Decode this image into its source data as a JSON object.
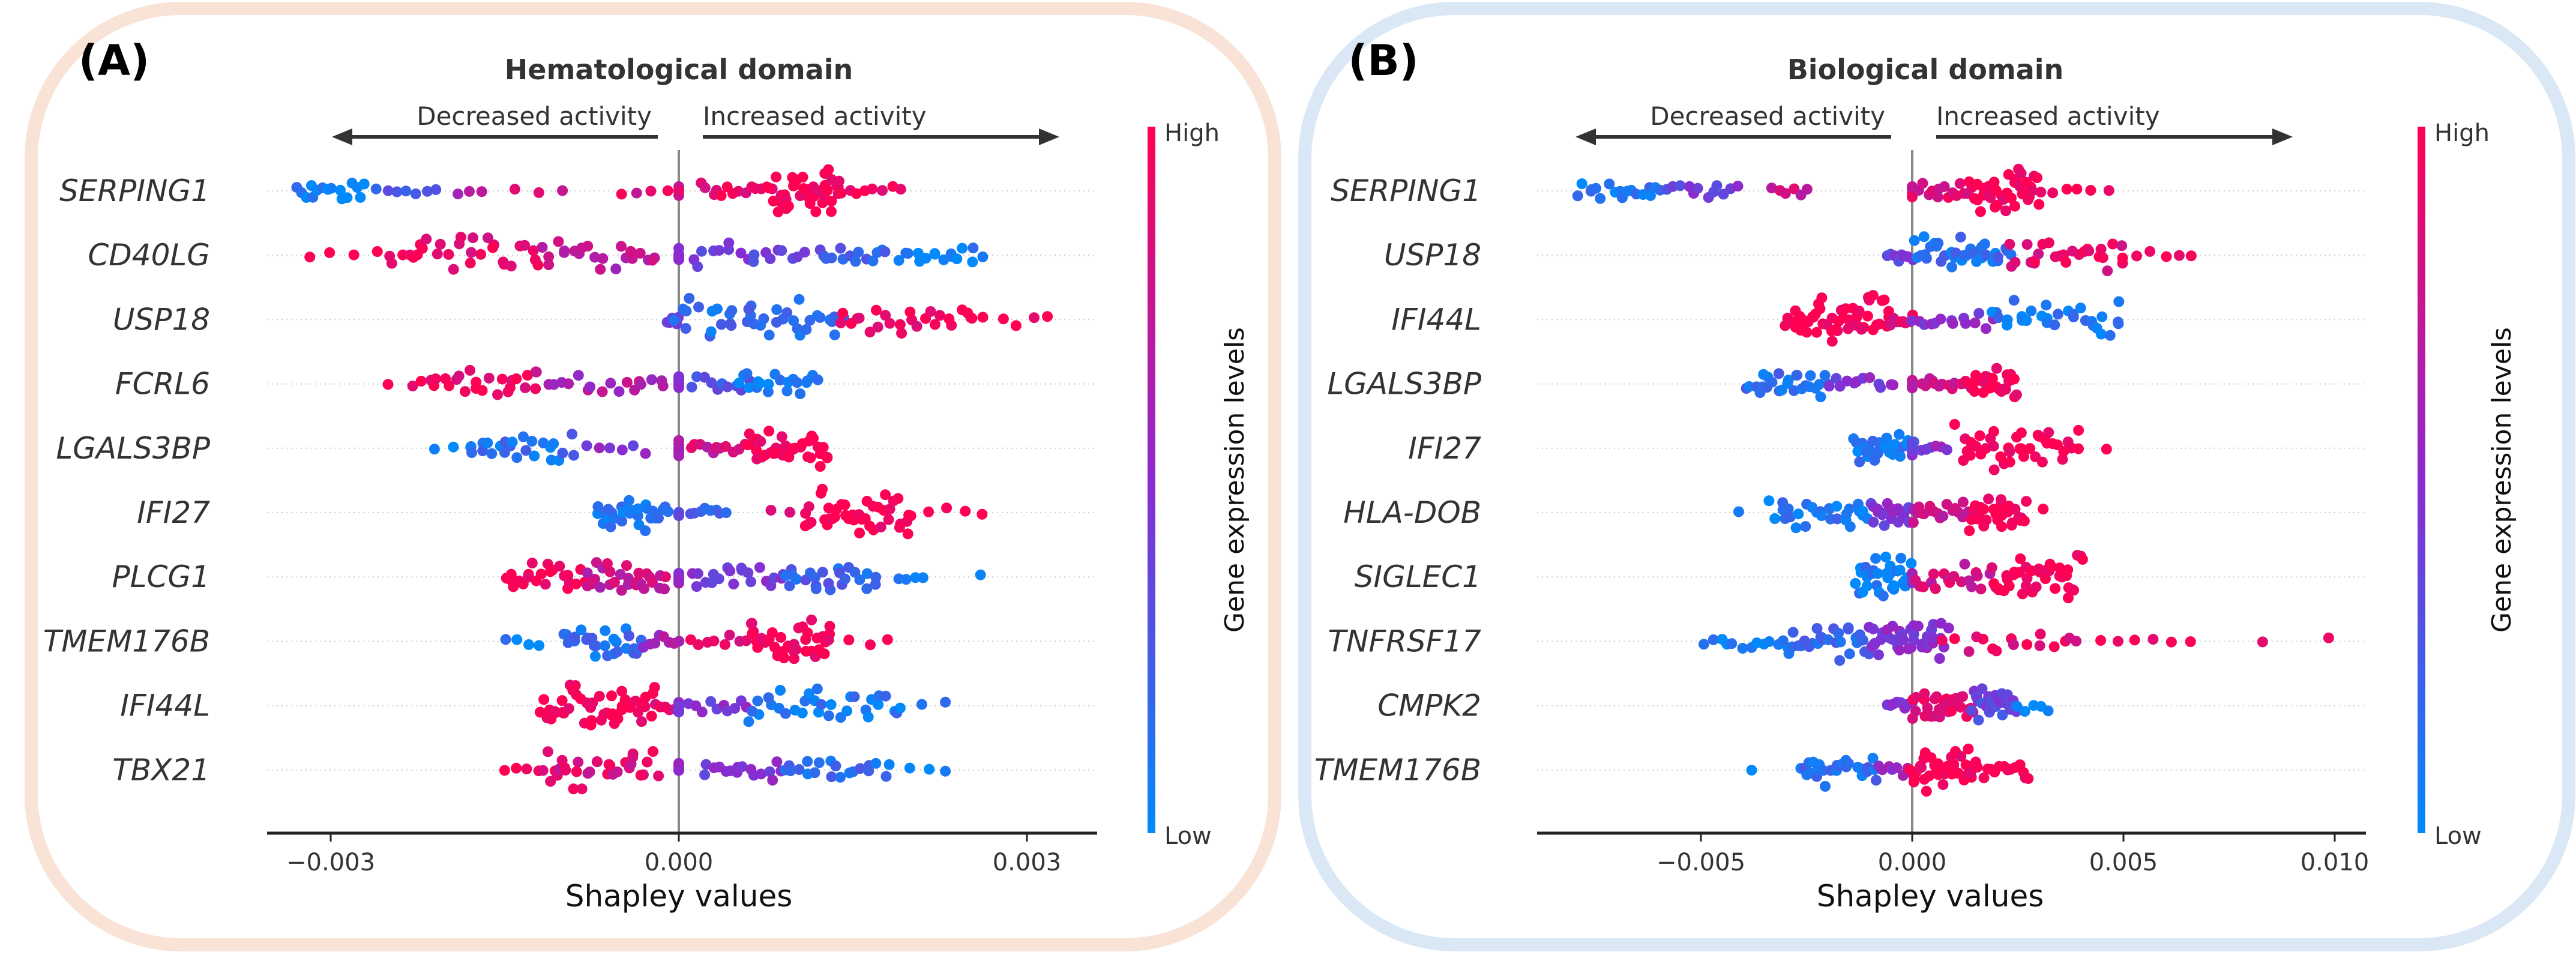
{
  "colors": {
    "low": "#008afb",
    "mid": "#8a2bd0",
    "high": "#ff0052",
    "border_a": "#f9e2d6",
    "border_b": "#dae7f5",
    "axis": "#222222",
    "zero_line": "#888888"
  },
  "chart_data": [
    {
      "type": "scatter",
      "subtype": "beeswarm (SHAP summary)",
      "panel_label": "(A)",
      "title": "Hematological domain",
      "decreased_label": "Decreased activity",
      "increased_label": "Increased activity",
      "xlabel": "Shapley values",
      "ylabel": "",
      "xlim": [
        -0.00347,
        0.0036
      ],
      "xticks": [
        -0.003,
        0.0,
        0.003
      ],
      "xtick_labels": [
        "−0.003",
        "0.000",
        "0.003"
      ],
      "grid": false,
      "colorbar": {
        "title": "Gene expression levels",
        "high_label": "High",
        "low_label": "Low",
        "placement": "right"
      },
      "features": [
        {
          "name": "SERPING1",
          "clusters": [
            [
              -0.0033,
              -0.0027,
              16,
              0.05
            ],
            [
              -0.0026,
              -0.0021,
              7,
              0.25
            ],
            [
              -0.0019,
              -0.0017,
              3,
              0.6
            ],
            [
              -0.0014,
              -0.001,
              3,
              0.8
            ],
            [
              -0.0005,
              -0.0001,
              4,
              0.85
            ],
            [
              0.0,
              0.0,
              6,
              0.8
            ],
            [
              0.0002,
              0.0008,
              14,
              0.9
            ],
            [
              0.0008,
              0.0014,
              40,
              1.0
            ],
            [
              0.0014,
              0.0019,
              8,
              0.97
            ]
          ]
        },
        {
          "name": "CD40LG",
          "clusters": [
            [
              -0.0032,
              -0.0026,
              4,
              1.0
            ],
            [
              -0.0025,
              -0.0012,
              30,
              0.9
            ],
            [
              -0.0012,
              -0.0002,
              22,
              0.7
            ],
            [
              0.0,
              0.0,
              8,
              0.55
            ],
            [
              0.0001,
              0.0011,
              18,
              0.4
            ],
            [
              0.0012,
              0.0018,
              14,
              0.25
            ],
            [
              0.0019,
              0.0026,
              16,
              0.05
            ]
          ]
        },
        {
          "name": "USP18",
          "clusters": [
            [
              -0.0001,
              0.0,
              6,
              0.45
            ],
            [
              0.0,
              0.0014,
              40,
              0.15
            ],
            [
              0.0014,
              0.0025,
              24,
              0.95
            ],
            [
              0.0025,
              0.0032,
              6,
              1.0
            ]
          ]
        },
        {
          "name": "FCRL6",
          "clusters": [
            [
              -0.0025,
              -0.0023,
              2,
              1.0
            ],
            [
              -0.0022,
              -0.0012,
              24,
              0.95
            ],
            [
              -0.0012,
              -0.0001,
              18,
              0.65
            ],
            [
              0.0,
              0.0,
              8,
              0.55
            ],
            [
              0.0001,
              0.0006,
              10,
              0.3
            ],
            [
              0.0005,
              0.0012,
              20,
              0.05
            ]
          ]
        },
        {
          "name": "LGALS3BP",
          "clusters": [
            [
              -0.0021,
              -0.0018,
              3,
              0.1
            ],
            [
              -0.0018,
              -0.0009,
              24,
              0.15
            ],
            [
              -0.0008,
              -0.0003,
              6,
              0.45
            ],
            [
              0.0,
              0.0,
              8,
              0.7
            ],
            [
              0.0001,
              0.0006,
              12,
              0.8
            ],
            [
              0.0006,
              0.0013,
              34,
              1.0
            ]
          ]
        },
        {
          "name": "IFI27",
          "clusters": [
            [
              -0.0007,
              -0.0001,
              30,
              0.1
            ],
            [
              0.0,
              0.0,
              8,
              0.35
            ],
            [
              0.0001,
              0.0004,
              8,
              0.25
            ],
            [
              0.0008,
              0.0011,
              3,
              0.95
            ],
            [
              0.0011,
              0.002,
              40,
              1.0
            ],
            [
              0.002,
              0.0026,
              5,
              1.0
            ]
          ]
        },
        {
          "name": "PLCG1",
          "clusters": [
            [
              -0.0015,
              -0.0008,
              24,
              1.0
            ],
            [
              -0.0008,
              -0.0001,
              28,
              0.75
            ],
            [
              0.0,
              0.0,
              8,
              0.55
            ],
            [
              0.0001,
              0.0009,
              20,
              0.45
            ],
            [
              0.0009,
              0.0017,
              24,
              0.2
            ],
            [
              0.0019,
              0.0021,
              4,
              0.05
            ],
            [
              0.0026,
              0.0026,
              1,
              0.05
            ]
          ]
        },
        {
          "name": "TMEM176B",
          "clusters": [
            [
              -0.0015,
              -0.0012,
              4,
              0.1
            ],
            [
              -0.001,
              -0.0003,
              28,
              0.15
            ],
            [
              -0.0003,
              0.0,
              8,
              0.6
            ],
            [
              0.0001,
              0.0006,
              8,
              0.9
            ],
            [
              0.0006,
              0.0013,
              40,
              1.0
            ],
            [
              0.0013,
              0.0018,
              4,
              0.95
            ]
          ]
        },
        {
          "name": "IFI44L",
          "clusters": [
            [
              -0.0012,
              -0.0002,
              48,
              1.0
            ],
            [
              -0.0002,
              0.0,
              6,
              0.85
            ],
            [
              0.0,
              0.0,
              6,
              0.5
            ],
            [
              0.0001,
              0.0006,
              10,
              0.45
            ],
            [
              0.0006,
              0.0019,
              32,
              0.08
            ],
            [
              0.0021,
              0.0023,
              2,
              0.05
            ]
          ]
        },
        {
          "name": "TBX21",
          "clusters": [
            [
              -0.0015,
              -0.0012,
              4,
              1.0
            ],
            [
              -0.0012,
              -0.0002,
              32,
              0.85
            ],
            [
              0.0,
              0.0,
              8,
              0.6
            ],
            [
              0.0002,
              0.0009,
              16,
              0.45
            ],
            [
              0.0009,
              0.0018,
              20,
              0.15
            ],
            [
              0.002,
              0.0023,
              3,
              0.05
            ]
          ]
        }
      ]
    },
    {
      "type": "scatter",
      "subtype": "beeswarm (SHAP summary)",
      "panel_label": "(B)",
      "title": "Biological domain",
      "decreased_label": "Decreased activity",
      "increased_label": "Increased activity",
      "xlabel": "Shapley values",
      "ylabel": "",
      "xlim": [
        -0.0089,
        0.0108
      ],
      "xticks": [
        -0.005,
        0.0,
        0.005,
        0.01
      ],
      "xtick_labels": [
        "−0.005",
        "0.000",
        "0.005",
        "0.010"
      ],
      "grid": false,
      "colorbar": {
        "title": "Gene expression levels",
        "high_label": "High",
        "low_label": "Low",
        "placement": "right"
      },
      "features": [
        {
          "name": "SERPING1",
          "clusters": [
            [
              -0.0079,
              -0.0059,
              18,
              0.1
            ],
            [
              -0.0058,
              -0.0041,
              12,
              0.4
            ],
            [
              -0.0033,
              -0.0025,
              6,
              0.75
            ],
            [
              0.0,
              0.0,
              5,
              0.85
            ],
            [
              0.0002,
              0.0014,
              14,
              0.85
            ],
            [
              0.0014,
              0.003,
              40,
              1.0
            ],
            [
              0.003,
              0.0046,
              6,
              1.0
            ]
          ]
        },
        {
          "name": "USP18",
          "clusters": [
            [
              -0.0006,
              0.0,
              8,
              0.4
            ],
            [
              0.0,
              0.0023,
              36,
              0.15
            ],
            [
              0.0023,
              0.005,
              26,
              0.9
            ],
            [
              0.005,
              0.0066,
              6,
              1.0
            ]
          ]
        },
        {
          "name": "IFI44L",
          "clusters": [
            [
              -0.003,
              -0.0005,
              54,
              1.0
            ],
            [
              -0.0005,
              0.0,
              8,
              0.85
            ],
            [
              0.0,
              0.0019,
              14,
              0.5
            ],
            [
              0.0019,
              0.005,
              30,
              0.08
            ]
          ]
        },
        {
          "name": "LGALS3BP",
          "clusters": [
            [
              -0.0039,
              -0.002,
              26,
              0.15
            ],
            [
              -0.002,
              -0.0004,
              12,
              0.45
            ],
            [
              0.0,
              0.0,
              8,
              0.7
            ],
            [
              0.0002,
              0.0014,
              14,
              0.8
            ],
            [
              0.0014,
              0.0025,
              26,
              1.0
            ]
          ]
        },
        {
          "name": "IFI27",
          "clusters": [
            [
              -0.0014,
              0.0,
              28,
              0.1
            ],
            [
              0.0,
              0.0,
              6,
              0.4
            ],
            [
              0.0002,
              0.0008,
              6,
              0.5
            ],
            [
              0.0011,
              0.0039,
              40,
              1.0
            ],
            [
              0.0046,
              0.0046,
              1,
              1.0
            ]
          ]
        },
        {
          "name": "HLA-DOB",
          "clusters": [
            [
              -0.0042,
              -0.004,
              1,
              0.05
            ],
            [
              -0.0033,
              -0.001,
              30,
              0.1
            ],
            [
              -0.001,
              0.0,
              20,
              0.45
            ],
            [
              0.0,
              0.0013,
              18,
              0.75
            ],
            [
              0.0013,
              0.0027,
              30,
              1.0
            ],
            [
              0.0031,
              0.0031,
              1,
              1.0
            ]
          ]
        },
        {
          "name": "SIGLEC1",
          "clusters": [
            [
              -0.0013,
              0.0,
              34,
              0.08
            ],
            [
              0.0,
              0.0,
              6,
              0.5
            ],
            [
              0.0001,
              0.002,
              20,
              0.8
            ],
            [
              0.002,
              0.004,
              40,
              1.0
            ]
          ]
        },
        {
          "name": "TNFRSF17",
          "clusters": [
            [
              -0.0049,
              -0.003,
              12,
              0.05
            ],
            [
              -0.003,
              -0.001,
              30,
              0.2
            ],
            [
              -0.001,
              0.0008,
              40,
              0.5
            ],
            [
              0.0008,
              0.004,
              16,
              0.9
            ],
            [
              0.0045,
              0.0066,
              6,
              1.0
            ],
            [
              0.0083,
              0.0098,
              2,
              1.0
            ]
          ]
        },
        {
          "name": "CMPK2",
          "clusters": [
            [
              -0.0006,
              0.0,
              8,
              0.5
            ],
            [
              0.0,
              0.0014,
              30,
              0.9
            ],
            [
              0.0014,
              0.0025,
              28,
              0.35
            ],
            [
              0.0025,
              0.0032,
              5,
              0.08
            ]
          ]
        },
        {
          "name": "TMEM176B",
          "clusters": [
            [
              -0.0038,
              -0.0038,
              1,
              0.05
            ],
            [
              -0.0027,
              -0.0008,
              28,
              0.15
            ],
            [
              -0.0008,
              0.0,
              8,
              0.6
            ],
            [
              0.0,
              0.0014,
              36,
              1.0
            ],
            [
              0.0014,
              0.0028,
              16,
              0.97
            ]
          ]
        }
      ]
    }
  ]
}
